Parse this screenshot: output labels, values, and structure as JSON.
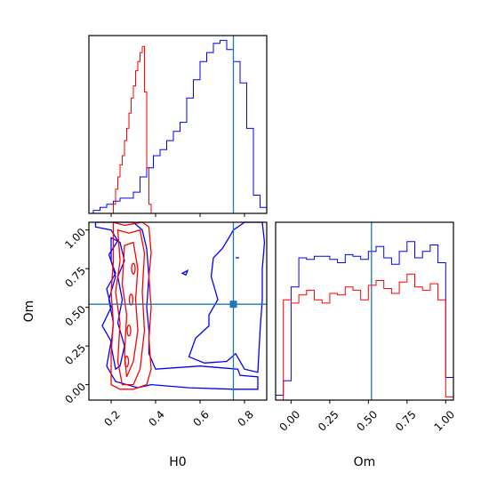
{
  "chart_data": {
    "type": "corner",
    "colors": {
      "series_a": "#0000ff",
      "series_b": "#ff0000",
      "truth": "#1f77b4",
      "frame": "#000000"
    },
    "truth": {
      "H0": 0.75,
      "Om": 0.52
    },
    "panels": {
      "h0_hist": {
        "type": "histogram-step",
        "xlim": [
          0.1,
          0.9
        ],
        "series": [
          {
            "color_key": "series_a",
            "bins": [
              [
                0.1,
                0.0
              ],
              [
                0.12,
                0.0
              ],
              [
                0.14,
                0.0
              ],
              [
                0.16,
                0.0
              ],
              [
                0.18,
                0.0
              ],
              [
                0.2,
                0.0
              ],
              [
                0.22,
                0.0
              ],
              [
                0.24,
                0.0
              ],
              [
                0.26,
                0.0
              ],
              [
                0.28,
                0.0
              ],
              [
                0.3,
                0.0
              ],
              [
                0.32,
                0.0
              ]
            ]
          },
          {
            "color_key": "series_b",
            "bins": []
          }
        ],
        "blue_counts": [
          1,
          2,
          3,
          4,
          5,
          5,
          7,
          12,
          15,
          19,
          21,
          24,
          27,
          30,
          38,
          44,
          50,
          53,
          56,
          57,
          54,
          50,
          43,
          28,
          6,
          2
        ],
        "red_counts": [
          3,
          8,
          12,
          16,
          19,
          24,
          28,
          33,
          38,
          42,
          47,
          50,
          53,
          55,
          40,
          15,
          3
        ]
      },
      "om_hist": {
        "type": "histogram-step",
        "xlim": [
          -0.1,
          1.05
        ],
        "tick_labels": [
          "0.00",
          "0.25",
          "0.50",
          "0.75",
          "1.00"
        ],
        "blue_counts": [
          3,
          12,
          70,
          88,
          87,
          89,
          89,
          87,
          85,
          90,
          89,
          87,
          92,
          95,
          88,
          84,
          92,
          98,
          88,
          92,
          96,
          85,
          14
        ],
        "red_counts": [
          0,
          62,
          60,
          65,
          68,
          62,
          60,
          66,
          65,
          70,
          68,
          62,
          71,
          74,
          69,
          66,
          73,
          78,
          70,
          68,
          72,
          62,
          2
        ]
      },
      "joint": {
        "type": "contour",
        "xlim": [
          0.1,
          0.9
        ],
        "ylim": [
          -0.1,
          1.05
        ],
        "x_tick_labels": [
          "0.2",
          "0.4",
          "0.6",
          "0.8"
        ],
        "y_tick_labels": [
          "0.00",
          "0.25",
          "0.50",
          "0.75",
          "1.00"
        ],
        "xlabel": "H0",
        "ylabel": "Om"
      }
    },
    "xlabel_bottom_left": "H0",
    "xlabel_bottom_right": "Om",
    "ylabel_left": "Om"
  }
}
